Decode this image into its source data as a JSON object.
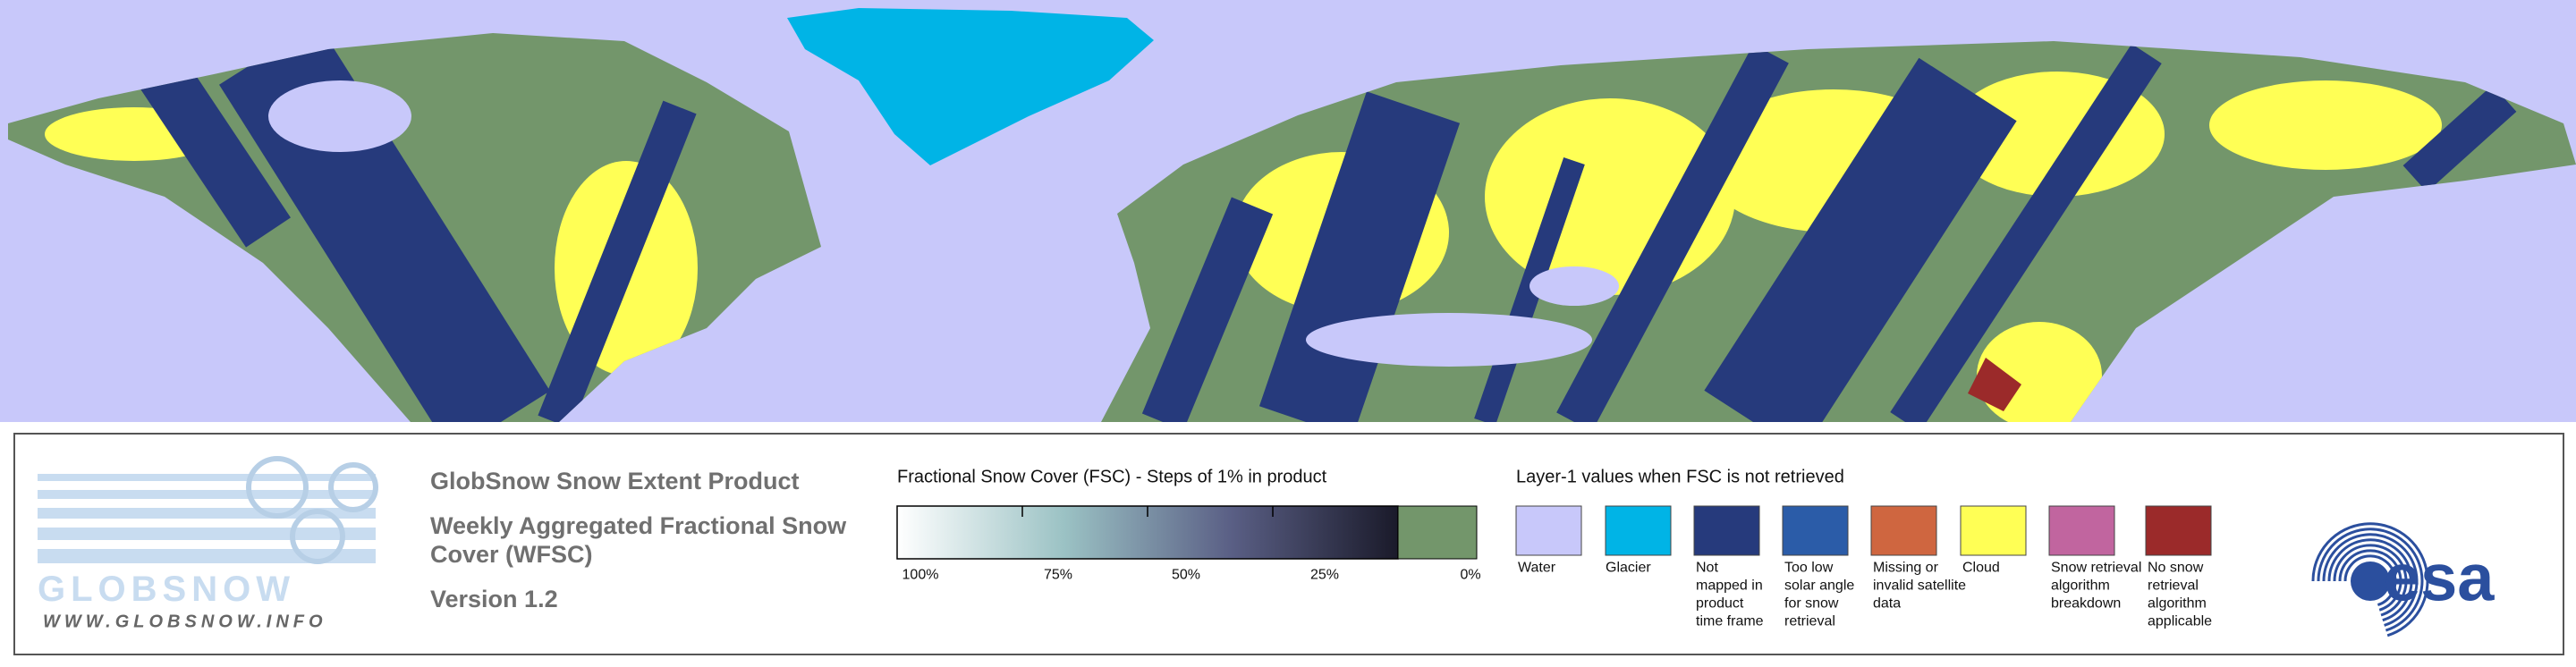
{
  "product": {
    "title": "GlobSnow Snow Extent Product",
    "subtitle_lines": [
      "Weekly Aggregated Fractional Snow",
      "Cover (WFSC)"
    ],
    "version": "Version 1.2"
  },
  "logo": {
    "name": "GLOBSNOW",
    "url": "WWW.GLOBSNOW.INFO",
    "agency": "esa"
  },
  "fsc_legend": {
    "title": "Fractional Snow Cover (FSC) - Steps of 1% in product",
    "ticks": [
      "100%",
      "75%",
      "50%",
      "25%",
      "0%"
    ],
    "gradient": [
      "#ffffff",
      "#9bc2c4",
      "#5a5f85",
      "#1a1a2a"
    ],
    "zero_color": "#73966b"
  },
  "layer1_legend": {
    "title": "Layer-1 values when FSC is not retrieved",
    "items": [
      {
        "color": "#c8c8fa",
        "label": [
          "Water"
        ]
      },
      {
        "color": "#00b4e6",
        "label": [
          "Glacier"
        ]
      },
      {
        "color": "#263a7c",
        "label": [
          "Not",
          "mapped in",
          "product",
          "time frame"
        ]
      },
      {
        "color": "#2b5ca8",
        "label": [
          "Too low",
          "solar angle",
          "for snow",
          "retrieval"
        ]
      },
      {
        "color": "#cf6640",
        "label": [
          "Missing or",
          "invalid satellite",
          "data"
        ]
      },
      {
        "color": "#ffff55",
        "label": [
          "Cloud"
        ]
      },
      {
        "color": "#c1659f",
        "label": [
          "Snow retrieval",
          "algorithm",
          "breakdown"
        ]
      },
      {
        "color": "#9b2a2a",
        "label": [
          "No snow",
          "retrieval",
          "algorithm",
          "applicable"
        ]
      }
    ]
  }
}
